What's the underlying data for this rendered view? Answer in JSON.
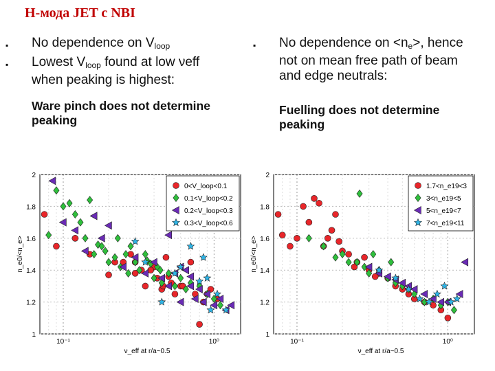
{
  "slide": {
    "title": "Н-мода JET с NBI"
  },
  "left_column": {
    "bullets": [
      {
        "text": "No dependence on V",
        "sub": "loop",
        "after": ""
      },
      {
        "text": "Lowest V",
        "sub": "loop",
        "after": " found at low νeff when peaking is highest:"
      }
    ],
    "conclusion": "Ware pinch does not determine peaking"
  },
  "right_column": {
    "bullets": [
      {
        "text": "No dependence on <n",
        "sub": "e",
        "after": ">, hence not on mean free path of beam and edge neutrals:"
      }
    ],
    "conclusion": "Fuelling does not determine peaking"
  },
  "chart_data": [
    {
      "type": "scatter",
      "xscale": "log",
      "xlim": [
        0.07,
        1.5
      ],
      "ylim": [
        1,
        2
      ],
      "xlabel": "ν_eff at r/a~0.5",
      "ylabel": "n_e0/<n_e>",
      "xticks": [
        "10⁻¹",
        "10⁰"
      ],
      "yticks": [
        "1",
        "1.2",
        "1.4",
        "1.6",
        "1.8",
        "2"
      ],
      "grid": true,
      "legend_position": "top-right",
      "series": [
        {
          "name": "0<V_loop<0.1",
          "marker": "circle",
          "color": "#e8262a",
          "x": [
            0.075,
            0.09,
            0.12,
            0.15,
            0.2,
            0.25,
            0.3,
            0.35,
            0.4,
            0.45,
            0.5,
            0.55,
            0.6,
            0.7,
            0.8,
            0.9,
            0.3,
            0.38,
            0.42,
            0.48,
            0.52,
            0.62,
            0.75,
            0.85,
            0.95,
            1.05,
            0.22,
            0.28,
            0.33,
            0.46
          ],
          "y": [
            1.75,
            1.55,
            1.6,
            1.5,
            1.37,
            1.45,
            1.38,
            1.3,
            1.42,
            1.28,
            1.36,
            1.25,
            1.3,
            1.45,
            1.06,
            1.25,
            1.45,
            1.4,
            1.35,
            1.48,
            1.32,
            1.3,
            1.25,
            1.2,
            1.28,
            1.22,
            1.45,
            1.5,
            1.4,
            1.3
          ]
        },
        {
          "name": "0.1<V_loop<0.2",
          "marker": "diamond",
          "color": "#2fbf3c",
          "x": [
            0.08,
            0.09,
            0.1,
            0.11,
            0.12,
            0.13,
            0.14,
            0.15,
            0.16,
            0.17,
            0.18,
            0.19,
            0.2,
            0.22,
            0.24,
            0.26,
            0.28,
            0.3,
            0.32,
            0.35,
            0.38,
            0.4,
            0.42,
            0.45,
            0.5,
            0.55,
            0.6,
            0.65,
            0.7,
            0.8,
            0.9,
            1.0,
            1.1,
            0.23,
            0.27,
            0.36,
            0.44
          ],
          "y": [
            1.62,
            1.9,
            1.8,
            1.82,
            1.75,
            1.7,
            1.6,
            1.84,
            1.5,
            1.56,
            1.55,
            1.52,
            1.45,
            1.48,
            1.42,
            1.5,
            1.55,
            1.45,
            1.4,
            1.5,
            1.44,
            1.35,
            1.42,
            1.32,
            1.38,
            1.3,
            1.35,
            1.28,
            1.32,
            1.3,
            1.25,
            1.22,
            1.18,
            1.6,
            1.38,
            1.46,
            1.4
          ]
        },
        {
          "name": "0.2<V_loop<0.3",
          "marker": "triangle-left",
          "color": "#6a2bb5",
          "x": [
            0.085,
            0.1,
            0.12,
            0.14,
            0.16,
            0.18,
            0.2,
            0.25,
            0.3,
            0.35,
            0.4,
            0.45,
            0.5,
            0.55,
            0.6,
            0.65,
            0.7,
            0.75,
            0.8,
            0.85,
            0.9,
            1.0,
            1.1,
            1.2,
            1.3,
            0.5,
            0.6,
            0.7
          ],
          "y": [
            1.96,
            1.7,
            1.65,
            1.52,
            1.74,
            1.6,
            1.68,
            1.42,
            1.48,
            1.38,
            1.45,
            1.35,
            1.3,
            1.38,
            1.2,
            1.4,
            1.3,
            1.22,
            1.28,
            1.2,
            1.25,
            1.18,
            1.22,
            1.15,
            1.18,
            1.62,
            1.42,
            1.36
          ]
        },
        {
          "name": "0.3<V_loop<0.6",
          "marker": "star",
          "color": "#2fb4e6",
          "x": [
            0.3,
            0.35,
            0.45,
            0.6,
            0.7,
            0.8,
            0.85,
            0.95,
            1.05,
            1.2,
            0.9,
            0.55
          ],
          "y": [
            1.58,
            1.45,
            1.2,
            1.42,
            1.55,
            1.33,
            1.48,
            1.15,
            1.25,
            1.15,
            1.35,
            1.38
          ]
        }
      ]
    },
    {
      "type": "scatter",
      "xscale": "log",
      "xlim": [
        0.07,
        1.5
      ],
      "ylim": [
        1,
        2
      ],
      "xlabel": "ν_eff at r/a~0.5",
      "ylabel": "n_e0/<n_e>",
      "xticks": [
        "10⁻¹",
        "10⁰"
      ],
      "yticks": [
        "1",
        "1.2",
        "1.4",
        "1.6",
        "1.8",
        "2"
      ],
      "grid": true,
      "legend_position": "top-right",
      "series": [
        {
          "name": "1.7<n_e19<3",
          "marker": "circle",
          "color": "#e8262a",
          "x": [
            0.075,
            0.08,
            0.09,
            0.1,
            0.11,
            0.12,
            0.13,
            0.14,
            0.15,
            0.16,
            0.18,
            0.2,
            0.22,
            0.25,
            0.28,
            0.3,
            0.35,
            0.4,
            0.45,
            0.5,
            0.55,
            0.6,
            0.7,
            0.8,
            0.9,
            1.0,
            0.17,
            0.19,
            0.24,
            0.33
          ],
          "y": [
            1.75,
            1.62,
            1.55,
            1.6,
            1.8,
            1.7,
            1.85,
            1.82,
            1.55,
            1.6,
            1.75,
            1.52,
            1.5,
            1.45,
            1.48,
            1.4,
            1.38,
            1.35,
            1.3,
            1.28,
            1.25,
            1.22,
            1.2,
            1.18,
            1.15,
            1.1,
            1.65,
            1.58,
            1.42,
            1.36
          ]
        },
        {
          "name": "3<n_e19<5",
          "marker": "diamond",
          "color": "#2fbf3c",
          "x": [
            0.12,
            0.15,
            0.18,
            0.2,
            0.22,
            0.25,
            0.28,
            0.3,
            0.35,
            0.4,
            0.45,
            0.5,
            0.55,
            0.6,
            0.7,
            0.8,
            0.9,
            1.0,
            1.1,
            0.26,
            0.32,
            0.42
          ],
          "y": [
            1.6,
            1.55,
            1.48,
            1.5,
            1.45,
            1.45,
            1.42,
            1.38,
            1.4,
            1.35,
            1.32,
            1.3,
            1.28,
            1.25,
            1.2,
            1.22,
            1.18,
            1.2,
            1.15,
            1.88,
            1.5,
            1.45
          ]
        },
        {
          "name": "5<n_e19<7",
          "marker": "triangle-left",
          "color": "#6a2bb5",
          "x": [
            0.3,
            0.35,
            0.4,
            0.45,
            0.5,
            0.55,
            0.6,
            0.7,
            0.8,
            0.9,
            1.0,
            1.2,
            1.3
          ],
          "y": [
            1.42,
            1.38,
            1.36,
            1.34,
            1.32,
            1.3,
            1.28,
            1.25,
            1.22,
            1.2,
            1.2,
            1.25,
            1.45
          ]
        },
        {
          "name": "7<n_e19<11",
          "marker": "star",
          "color": "#2fb4e6",
          "x": [
            0.35,
            0.45,
            0.55,
            0.65,
            0.75,
            0.85,
            0.95,
            1.05,
            1.15
          ],
          "y": [
            1.4,
            1.35,
            1.28,
            1.22,
            1.2,
            1.25,
            1.3,
            1.2,
            1.22
          ]
        }
      ]
    }
  ]
}
